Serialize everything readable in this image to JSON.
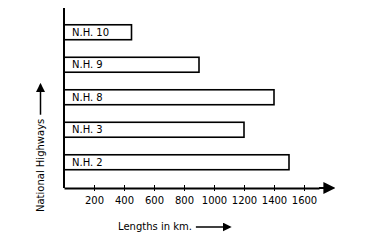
{
  "chart_data": {
    "type": "bar",
    "orientation": "horizontal",
    "x_label": "Lengths in km.",
    "y_label": "National Highways",
    "categories": [
      "N.H. 10",
      "N.H. 9",
      "N.H. 8",
      "N.H. 3",
      "N.H. 2"
    ],
    "values": [
      450,
      900,
      1400,
      1200,
      1500
    ],
    "color": "#ffffff",
    "xlim": [
      0,
      1700
    ],
    "xticks": [
      200,
      400,
      600,
      800,
      1000,
      1200,
      1400,
      1600
    ],
    "grid": false,
    "tick_labels": "x"
  }
}
